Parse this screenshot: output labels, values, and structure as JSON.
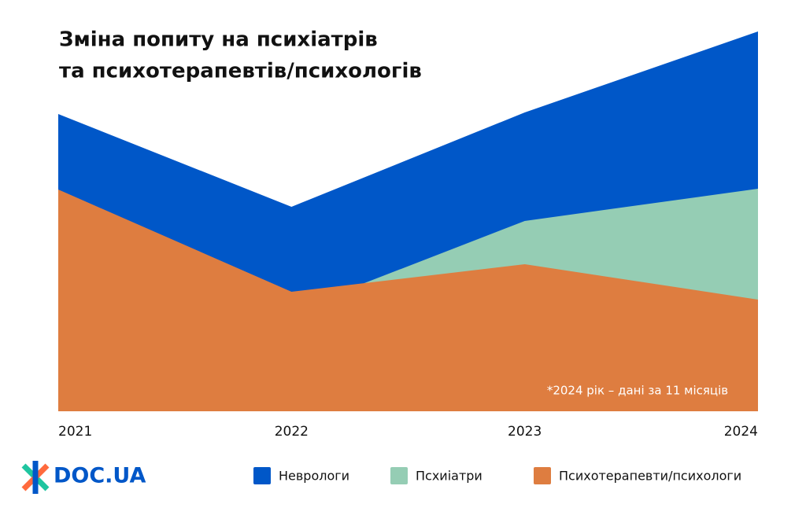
{
  "chart_data": {
    "type": "area",
    "title_lines": [
      "Зміна попиту на психіатрів",
      "та психотерапевтів/психологів"
    ],
    "categories": [
      "2021",
      "2022",
      "2023",
      "2024"
    ],
    "series": [
      {
        "name": "Неврологи",
        "color": "#0057c8",
        "values": [
          378,
          260,
          380,
          483
        ]
      },
      {
        "name": "Псхиіатри",
        "color": "#95cdb4",
        "values": [
          200,
          127,
          242,
          283
        ]
      },
      {
        "name": "Психотерапевти/психологи",
        "color": "#de7d40",
        "values": [
          282,
          152,
          187,
          142
        ]
      }
    ],
    "ylim": [
      0,
      483
    ],
    "annotation": "*2024 рік – дані за 11 місяців",
    "logo": "DOC.UA"
  }
}
